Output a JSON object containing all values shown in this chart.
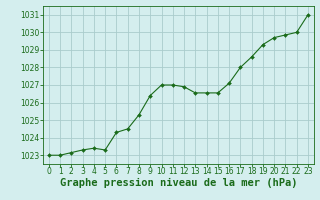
{
  "x": [
    0,
    1,
    2,
    3,
    4,
    5,
    6,
    7,
    8,
    9,
    10,
    11,
    12,
    13,
    14,
    15,
    16,
    17,
    18,
    19,
    20,
    21,
    22,
    23
  ],
  "y": [
    1023.0,
    1023.0,
    1023.15,
    1023.3,
    1023.4,
    1023.3,
    1024.3,
    1024.5,
    1025.3,
    1026.4,
    1027.0,
    1027.0,
    1026.9,
    1026.55,
    1026.55,
    1026.55,
    1027.1,
    1028.0,
    1028.6,
    1029.3,
    1029.7,
    1029.85,
    1030.0,
    1031.0
  ],
  "ylim": [
    1022.5,
    1031.5
  ],
  "xlim": [
    -0.5,
    23.5
  ],
  "yticks": [
    1023,
    1024,
    1025,
    1026,
    1027,
    1028,
    1029,
    1030,
    1031
  ],
  "xticks": [
    0,
    1,
    2,
    3,
    4,
    5,
    6,
    7,
    8,
    9,
    10,
    11,
    12,
    13,
    14,
    15,
    16,
    17,
    18,
    19,
    20,
    21,
    22,
    23
  ],
  "line_color": "#1a6b1a",
  "marker_color": "#1a6b1a",
  "bg_color": "#d4eeee",
  "grid_color": "#aacccc",
  "xlabel": "Graphe pression niveau de la mer (hPa)",
  "xlabel_color": "#1a6b1a",
  "tick_color": "#1a6b1a",
  "tick_fontsize": 5.5,
  "xlabel_fontsize": 7.5
}
